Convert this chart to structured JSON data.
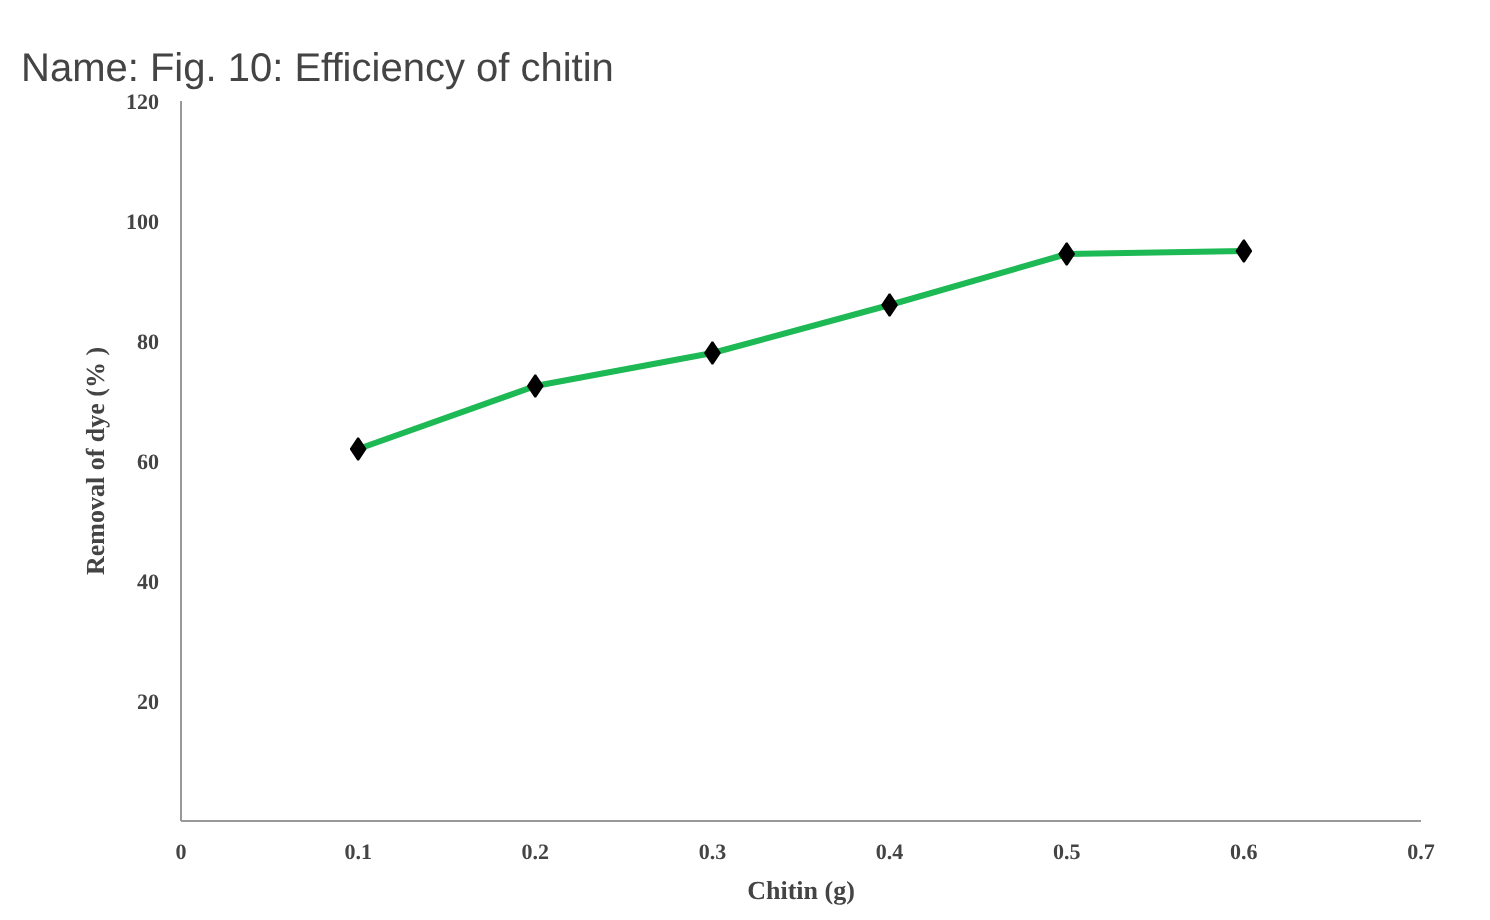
{
  "chart_data": {
    "type": "line",
    "title": "Name:  Fig. 10: Efficiency of chitin",
    "xlabel": "Chitin (g)",
    "ylabel": "Removal of dye (% )",
    "x": [
      0.1,
      0.2,
      0.3,
      0.4,
      0.5,
      0.6
    ],
    "series": [
      {
        "color": "#1db954",
        "values": [
          62,
          72.5,
          78,
          86,
          94.5,
          95
        ]
      }
    ],
    "xlim": [
      0,
      0.7
    ],
    "xticks": [
      0,
      0.1,
      0.2,
      0.3,
      0.4,
      0.5,
      0.6,
      0.7
    ],
    "ylim": [
      0,
      120
    ],
    "yticks": [
      20,
      40,
      60,
      80,
      100,
      120
    ],
    "marker": "diamond"
  }
}
